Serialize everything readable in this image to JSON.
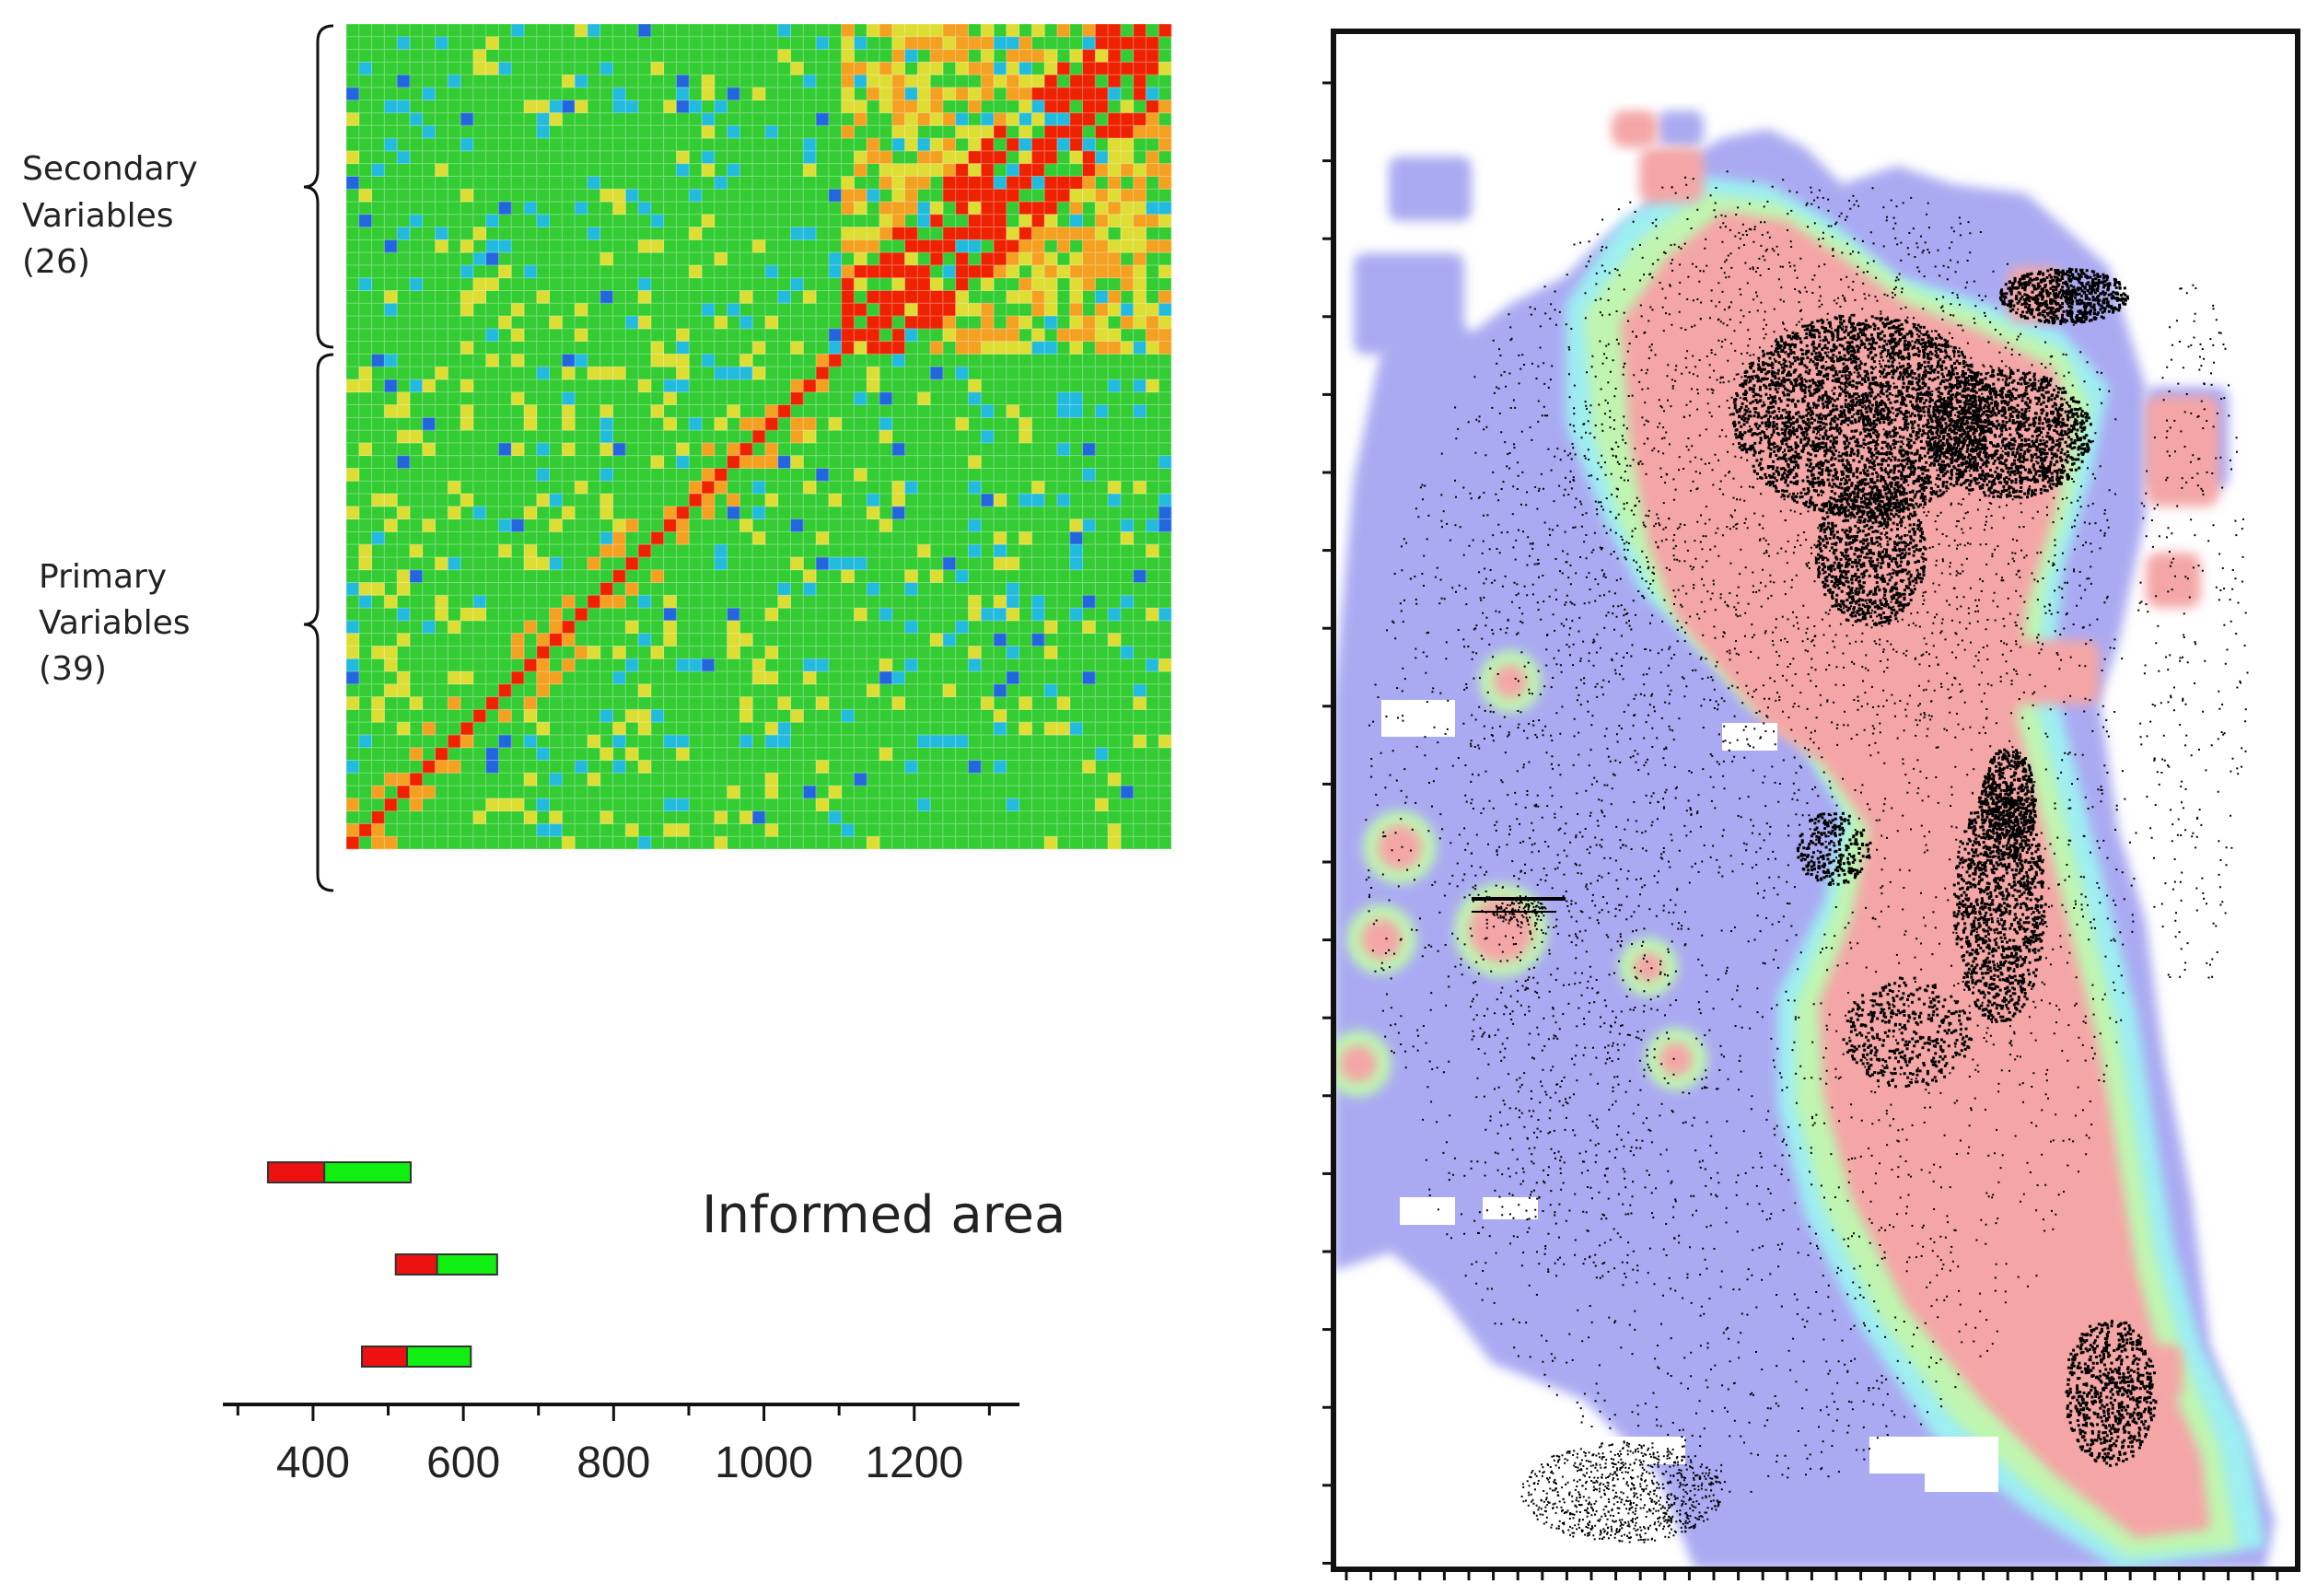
{
  "labels": {
    "secondary": [
      "Secondary",
      "Variables",
      "(26)"
    ],
    "primary": [
      "Primary",
      "Variables",
      "(39)"
    ],
    "informed_area": "Informed area"
  },
  "colors": {
    "matrix_green": "#33cc33",
    "matrix_yellow": "#dddd33",
    "matrix_orange": "#f4a020",
    "matrix_red": "#ee2200",
    "matrix_cyan": "#22bbdd",
    "matrix_blue": "#2266dd",
    "map_lavender": "#aaaaf2",
    "map_pink": "#f4a6a6",
    "map_light_green": "#bff5b0",
    "map_cyan": "#9eeef2",
    "bar_red": "#ee1111",
    "bar_green": "#11ee11"
  },
  "chart_data": {
    "type": "bar",
    "title": "",
    "xlabel": "",
    "ylabel": "",
    "xlim": [
      280,
      1340
    ],
    "x_ticks": [
      400,
      600,
      800,
      1000,
      1200
    ],
    "bars": [
      {
        "red_start": 340,
        "red_end": 415,
        "green_end": 530
      },
      {
        "red_start": 510,
        "red_end": 565,
        "green_end": 645
      },
      {
        "red_start": 465,
        "red_end": 525,
        "green_end": 610
      }
    ]
  }
}
